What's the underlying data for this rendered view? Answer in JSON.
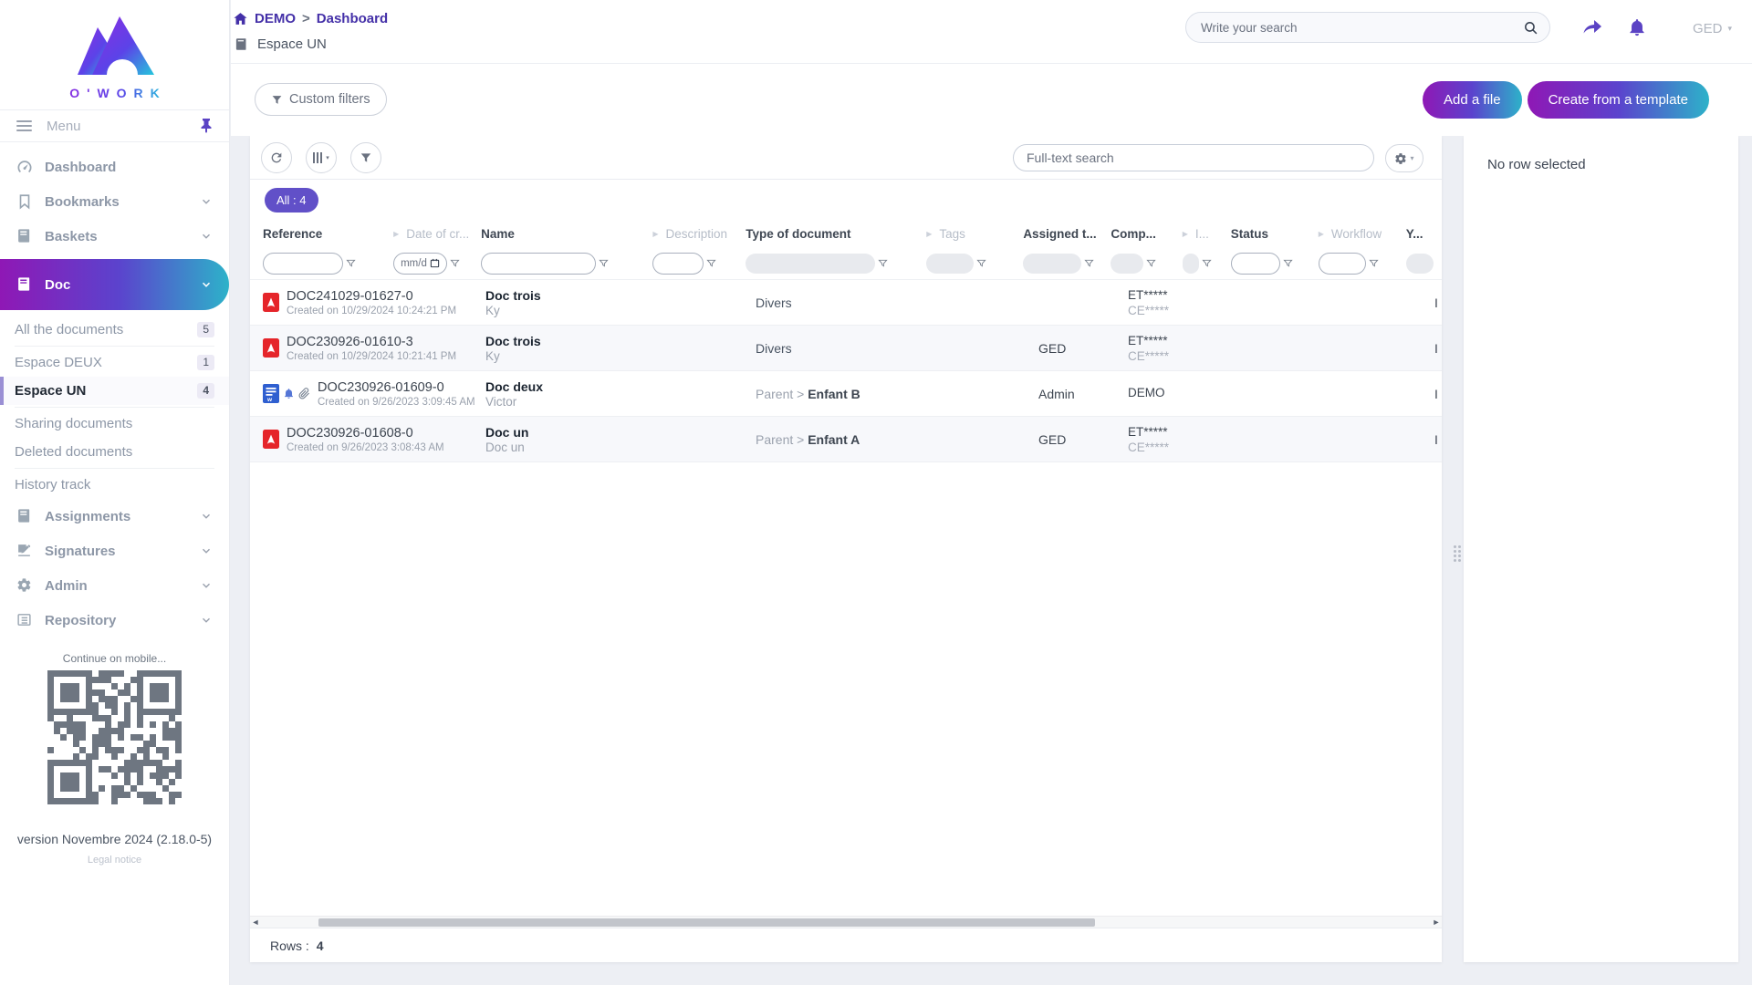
{
  "app": {
    "logo_text": "O'WORK",
    "mobile_hint": "Continue on mobile...",
    "version": "version Novembre 2024 (2.18.0-5)",
    "legal_notice": "Legal notice"
  },
  "header": {
    "breadcrumb_home": "DEMO",
    "breadcrumb_sep": ">",
    "breadcrumb_current": "Dashboard",
    "space_title": "Espace UN",
    "search_placeholder": "Write your search",
    "user_label": "GED",
    "custom_filters_label": "Custom filters",
    "add_file_label": "Add a file",
    "create_template_label": "Create from a template"
  },
  "sidebar": {
    "menu_label": "Menu",
    "items": [
      {
        "label": "Dashboard"
      },
      {
        "label": "Bookmarks"
      },
      {
        "label": "Baskets"
      },
      {
        "label": "Doc"
      }
    ],
    "doc_children": [
      {
        "label": "All the documents",
        "count": "5"
      },
      {
        "label": "Espace DEUX",
        "count": "1"
      },
      {
        "label": "Espace UN",
        "count": "4"
      },
      {
        "label": "Sharing documents",
        "count": ""
      },
      {
        "label": "Deleted documents",
        "count": ""
      },
      {
        "label": "History track",
        "count": ""
      }
    ],
    "bottom_items": [
      {
        "label": "Assignments"
      },
      {
        "label": "Signatures"
      },
      {
        "label": "Admin"
      },
      {
        "label": "Repository"
      }
    ]
  },
  "toolbar": {
    "all_badge": "All : 4",
    "fulltext_placeholder": "Full-text search"
  },
  "table": {
    "columns": [
      {
        "label": "Reference"
      },
      {
        "label": "Date of cr..."
      },
      {
        "label": "Name"
      },
      {
        "label": "Description"
      },
      {
        "label": "Type of document"
      },
      {
        "label": "Tags"
      },
      {
        "label": "Assigned t..."
      },
      {
        "label": "Comp..."
      },
      {
        "label": "I..."
      },
      {
        "label": "Status"
      },
      {
        "label": "Workflow"
      },
      {
        "label": "Y..."
      }
    ],
    "date_filter_placeholder": "mm/d",
    "edge_fragment": "I",
    "rows": [
      {
        "icon": "pdf",
        "reference": "DOC241029-01627-0",
        "created": "Created on 10/29/2024 10:24:21 PM",
        "name": "Doc trois",
        "subname": "Ky",
        "type_prefix": "",
        "type_value": "Divers",
        "assigned": "",
        "company": "ET*****",
        "company2": "CE*****"
      },
      {
        "icon": "pdf",
        "reference": "DOC230926-01610-3",
        "created": "Created on 10/29/2024 10:21:41 PM",
        "name": "Doc trois",
        "subname": "Ky",
        "type_prefix": "",
        "type_value": "Divers",
        "assigned": "GED",
        "company": "ET*****",
        "company2": "CE*****"
      },
      {
        "icon": "word",
        "reference": "DOC230926-01609-0",
        "created": "Created on 9/26/2023 3:09:45 AM",
        "name": "Doc deux",
        "subname": "Victor",
        "type_prefix": "Parent >",
        "type_value": "Enfant B",
        "assigned": "Admin",
        "company": "DEMO",
        "company2": ""
      },
      {
        "icon": "pdf",
        "reference": "DOC230926-01608-0",
        "created": "Created on 9/26/2023 3:08:43 AM",
        "name": "Doc un",
        "subname": "Doc un",
        "type_prefix": "Parent >",
        "type_value": "Enfant A",
        "assigned": "GED",
        "company": "ET*****",
        "company2": "CE*****"
      }
    ],
    "footer_label": "Rows :",
    "footer_value": "4"
  },
  "right_panel": {
    "empty_text": "No row selected"
  },
  "colors": {
    "gradient_start": "#8f18b5",
    "gradient_mid": "#5b43cd",
    "gradient_end": "#2db2c9",
    "accent_purple": "#5b43c4",
    "badge_purple": "#6150c8",
    "pdf_red": "#e5252a",
    "word_blue": "#2f5fd0"
  }
}
